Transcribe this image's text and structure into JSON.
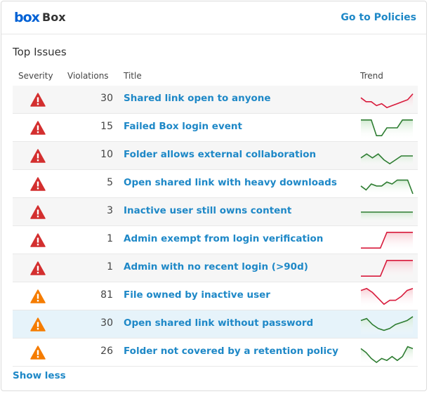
{
  "header": {
    "logo": "box",
    "title": "Box",
    "link": "Go to Policies"
  },
  "section_title": "Top Issues",
  "columns": [
    "Severity",
    "Violations",
    "Title",
    "Trend"
  ],
  "trend_ylim": [
    0,
    10
  ],
  "rows": [
    {
      "severity_color": "#d32f2f",
      "violations": 30,
      "title": "Shared link open to anyone",
      "trend": [
        6,
        4,
        4,
        2,
        3,
        1,
        2,
        3,
        4,
        5,
        8
      ],
      "trend_color": "#d81b3c"
    },
    {
      "severity_color": "#d32f2f",
      "violations": 15,
      "title": "Failed Box login event",
      "trend": [
        9,
        9,
        9,
        1,
        1,
        5,
        5,
        5,
        9,
        9,
        9
      ],
      "trend_color": "#2e7d32"
    },
    {
      "severity_color": "#d32f2f",
      "violations": 10,
      "title": "Folder allows external collaboration",
      "trend": [
        4,
        6,
        4,
        6,
        3,
        1,
        3,
        5,
        5,
        5
      ],
      "trend_color": "#2e7d32"
    },
    {
      "severity_color": "#d32f2f",
      "violations": 5,
      "title": "Open shared link with heavy downloads",
      "trend": [
        4,
        2,
        5,
        4,
        4,
        6,
        5,
        7,
        7,
        7,
        0
      ],
      "trend_color": "#2e7d32"
    },
    {
      "severity_color": "#d32f2f",
      "violations": 3,
      "title": "Inactive user still owns content",
      "trend": [
        5,
        5,
        5,
        5,
        5
      ],
      "trend_color": "#2e7d32"
    },
    {
      "severity_color": "#d32f2f",
      "violations": 1,
      "title": "Admin exempt from login verification",
      "trend": [
        1,
        1,
        1,
        1,
        9,
        9,
        9,
        9,
        9
      ],
      "trend_color": "#d81b3c"
    },
    {
      "severity_color": "#d32f2f",
      "violations": 1,
      "title": "Admin with no recent login (>90d)",
      "trend": [
        1,
        1,
        1,
        1,
        9,
        9,
        9,
        9,
        9
      ],
      "trend_color": "#d81b3c"
    },
    {
      "severity_color": "#f57c00",
      "violations": 81,
      "title": "File owned by inactive user",
      "trend": [
        8,
        9,
        7,
        4,
        1,
        3,
        3,
        5,
        8,
        9
      ],
      "trend_color": "#d81b3c"
    },
    {
      "severity_color": "#f57c00",
      "violations": 30,
      "title": "Open shared link without password",
      "trend": [
        7,
        8,
        5,
        3,
        2,
        3,
        5,
        6,
        7,
        9
      ],
      "trend_color": "#2e7d32"
    },
    {
      "severity_color": "#f57c00",
      "violations": 26,
      "title": "Folder not covered by a retention policy",
      "trend": [
        7,
        5,
        2,
        0,
        2,
        1,
        3,
        1,
        3,
        8,
        7
      ],
      "trend_color": "#2e7d32"
    }
  ],
  "footer_link": "Show less"
}
